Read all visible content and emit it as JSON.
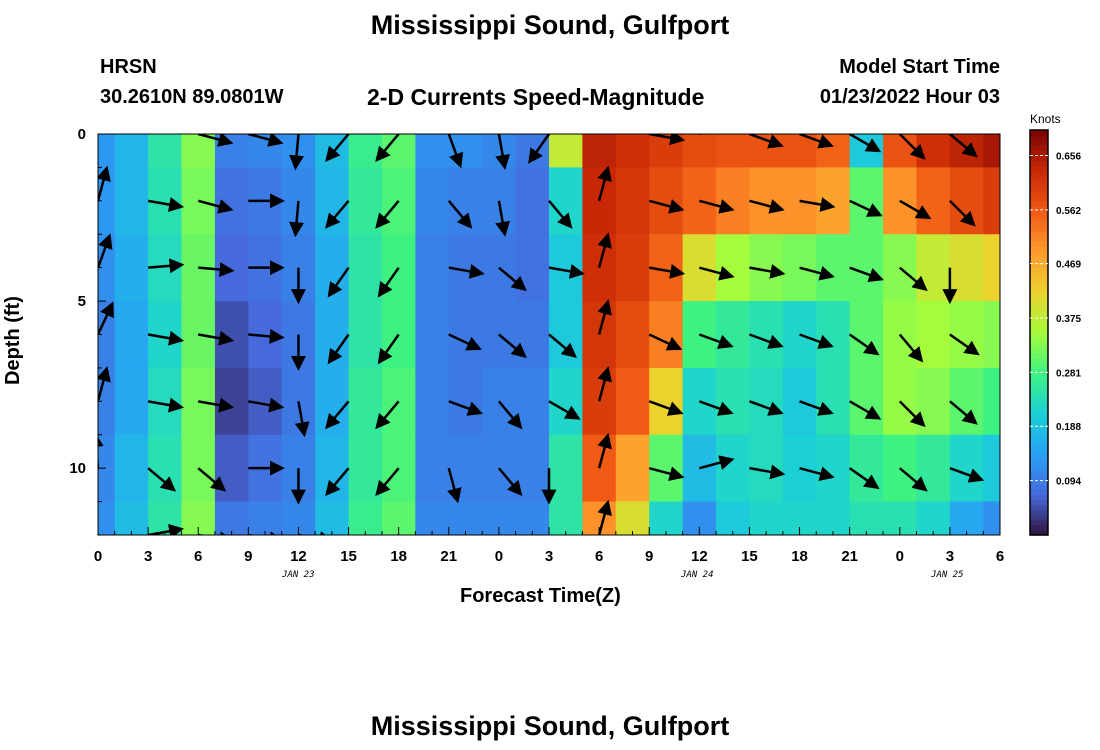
{
  "header": {
    "title": "Mississippi Sound, Gulfport",
    "station": "HRSN",
    "coords": "30.2610N  89.0801W",
    "product": "2-D Currents Speed-Magnitude",
    "model_label": "Model Start Time",
    "model_time": "01/23/2022 Hour 03",
    "bottom_title": "Mississippi Sound, Gulfport"
  },
  "chart_data": {
    "type": "heatmap",
    "xlabel": "Forecast Time(Z)",
    "ylabel": "Depth (ft)",
    "xlim": [
      0,
      54
    ],
    "ylim": [
      0,
      12
    ],
    "x_tick_values": [
      0,
      3,
      6,
      9,
      12,
      15,
      18,
      21,
      24,
      27,
      30,
      33,
      36,
      39,
      42,
      45,
      48,
      51,
      54
    ],
    "x_tick_labels": [
      "0",
      "3",
      "6",
      "9",
      "12",
      "15",
      "18",
      "21",
      "0",
      "3",
      "6",
      "9",
      "12",
      "15",
      "18",
      "21",
      "0",
      "3",
      "6"
    ],
    "y_tick_values": [
      0,
      5,
      10
    ],
    "y_tick_labels": [
      "0",
      "5",
      "10"
    ],
    "date_labels": [
      {
        "text": "JAN 23",
        "x": 12
      },
      {
        "text": "JAN 24",
        "x": 36
      },
      {
        "text": "JAN 25",
        "x": 51
      }
    ],
    "colorbar": {
      "label": "Knots",
      "min": 0.0,
      "max": 0.7,
      "ticks": [
        "0.656",
        "0.562",
        "0.469",
        "0.375",
        "0.281",
        "0.188",
        "0.094"
      ],
      "tick_values": [
        0.656,
        0.562,
        0.469,
        0.375,
        0.281,
        0.188,
        0.094
      ]
    },
    "depth_levels": [
      0,
      2,
      4,
      6,
      8,
      10,
      12
    ],
    "speed_by_hour": [
      {
        "x": 0,
        "levels": [
          0.13,
          0.13,
          0.12,
          0.1,
          0.1,
          0.11,
          0.12
        ]
      },
      {
        "x": 2,
        "levels": [
          0.17,
          0.17,
          0.16,
          0.15,
          0.15,
          0.17,
          0.18
        ]
      },
      {
        "x": 4,
        "levels": [
          0.25,
          0.24,
          0.23,
          0.22,
          0.23,
          0.24,
          0.25
        ]
      },
      {
        "x": 6,
        "levels": [
          0.33,
          0.32,
          0.31,
          0.31,
          0.32,
          0.32,
          0.33
        ]
      },
      {
        "x": 8,
        "levels": [
          0.1,
          0.08,
          0.07,
          0.05,
          0.04,
          0.06,
          0.09
        ]
      },
      {
        "x": 10,
        "levels": [
          0.11,
          0.09,
          0.08,
          0.07,
          0.06,
          0.08,
          0.1
        ]
      },
      {
        "x": 12,
        "levels": [
          0.12,
          0.11,
          0.1,
          0.09,
          0.09,
          0.1,
          0.11
        ]
      },
      {
        "x": 14,
        "levels": [
          0.18,
          0.17,
          0.16,
          0.16,
          0.16,
          0.17,
          0.18
        ]
      },
      {
        "x": 16,
        "levels": [
          0.27,
          0.26,
          0.25,
          0.25,
          0.26,
          0.26,
          0.27
        ]
      },
      {
        "x": 18,
        "levels": [
          0.3,
          0.29,
          0.28,
          0.28,
          0.29,
          0.29,
          0.3
        ]
      },
      {
        "x": 20,
        "levels": [
          0.12,
          0.11,
          0.1,
          0.1,
          0.1,
          0.1,
          0.11
        ]
      },
      {
        "x": 22,
        "levels": [
          0.12,
          0.1,
          0.09,
          0.09,
          0.09,
          0.1,
          0.11
        ]
      },
      {
        "x": 24,
        "levels": [
          0.11,
          0.1,
          0.09,
          0.09,
          0.1,
          0.1,
          0.11
        ]
      },
      {
        "x": 26,
        "levels": [
          0.09,
          0.08,
          0.08,
          0.09,
          0.1,
          0.1,
          0.11
        ]
      },
      {
        "x": 28,
        "levels": [
          0.38,
          0.22,
          0.2,
          0.2,
          0.22,
          0.25,
          0.25
        ]
      },
      {
        "x": 30,
        "levels": [
          0.64,
          0.63,
          0.62,
          0.61,
          0.6,
          0.56,
          0.5
        ]
      },
      {
        "x": 32,
        "levels": [
          0.62,
          0.61,
          0.6,
          0.58,
          0.56,
          0.48,
          0.4
        ]
      },
      {
        "x": 34,
        "levels": [
          0.6,
          0.58,
          0.55,
          0.52,
          0.42,
          0.3,
          0.22
        ]
      },
      {
        "x": 36,
        "levels": [
          0.58,
          0.55,
          0.4,
          0.28,
          0.22,
          0.18,
          0.12
        ]
      },
      {
        "x": 38,
        "levels": [
          0.57,
          0.52,
          0.35,
          0.26,
          0.24,
          0.22,
          0.2
        ]
      },
      {
        "x": 40,
        "levels": [
          0.57,
          0.5,
          0.33,
          0.24,
          0.23,
          0.23,
          0.22
        ]
      },
      {
        "x": 42,
        "levels": [
          0.57,
          0.5,
          0.32,
          0.22,
          0.2,
          0.21,
          0.22
        ]
      },
      {
        "x": 44,
        "levels": [
          0.55,
          0.48,
          0.3,
          0.24,
          0.24,
          0.22,
          0.22
        ]
      },
      {
        "x": 46,
        "levels": [
          0.2,
          0.3,
          0.3,
          0.3,
          0.3,
          0.26,
          0.24
        ]
      },
      {
        "x": 48,
        "levels": [
          0.57,
          0.5,
          0.33,
          0.34,
          0.34,
          0.28,
          0.24
        ]
      },
      {
        "x": 50,
        "levels": [
          0.62,
          0.55,
          0.38,
          0.35,
          0.33,
          0.26,
          0.22
        ]
      },
      {
        "x": 52,
        "levels": [
          0.64,
          0.58,
          0.4,
          0.34,
          0.3,
          0.22,
          0.15
        ]
      },
      {
        "x": 54,
        "levels": [
          0.66,
          0.6,
          0.42,
          0.33,
          0.28,
          0.2,
          0.12
        ]
      }
    ],
    "vector_depths": [
      0,
      2,
      4,
      6,
      8,
      10,
      12
    ],
    "vector_hours": [
      0,
      3,
      6,
      9,
      12,
      15,
      18,
      21,
      24,
      27,
      30,
      33,
      36,
      39,
      42,
      45,
      48,
      51,
      54
    ],
    "vectors_deg": [
      [
        -75,
        -110,
        15,
        15,
        95,
        130,
        130,
        70,
        80,
        125,
        -75,
        10,
        -20,
        20,
        20,
        30,
        45,
        40,
        20
      ],
      [
        -75,
        10,
        15,
        0,
        95,
        130,
        130,
        50,
        80,
        50,
        -75,
        15,
        15,
        15,
        10,
        25,
        30,
        45,
        25
      ],
      [
        -70,
        -5,
        5,
        0,
        90,
        125,
        125,
        10,
        40,
        10,
        -75,
        10,
        15,
        10,
        15,
        20,
        40,
        90,
        -30
      ],
      [
        -65,
        10,
        10,
        5,
        90,
        125,
        125,
        25,
        40,
        40,
        -75,
        25,
        20,
        20,
        20,
        35,
        50,
        35,
        20
      ],
      [
        -75,
        10,
        10,
        10,
        80,
        130,
        130,
        20,
        50,
        30,
        -75,
        20,
        20,
        20,
        20,
        30,
        45,
        40,
        20
      ],
      [
        -95,
        40,
        40,
        0,
        90,
        130,
        130,
        75,
        50,
        90,
        -75,
        15,
        -15,
        10,
        15,
        35,
        40,
        20,
        30
      ],
      [
        20,
        -10,
        10,
        10,
        10,
        135,
        140,
        90,
        55,
        90,
        -75,
        45,
        65,
        25,
        75,
        35,
        45,
        40,
        30
      ]
    ]
  }
}
